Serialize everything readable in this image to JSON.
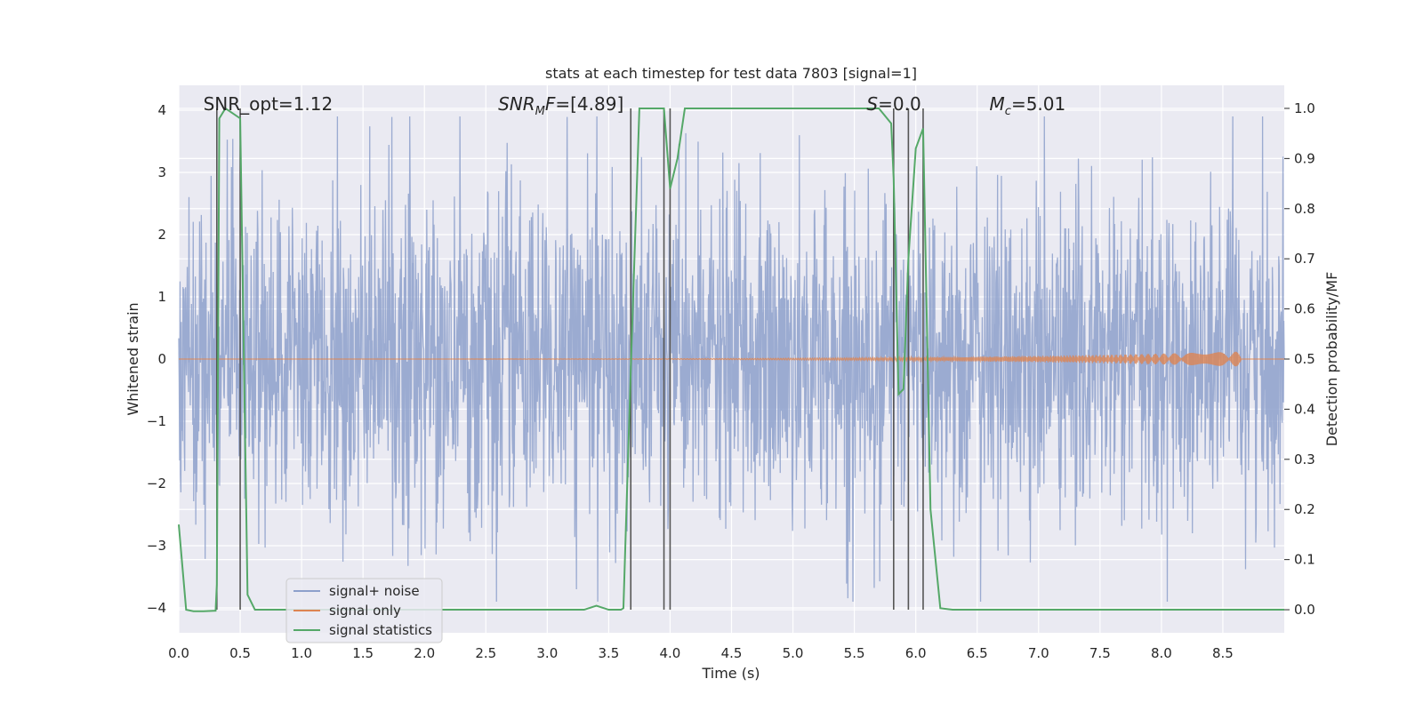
{
  "chart_data": {
    "type": "line",
    "title": "stats at each timestep for test data 7803 [signal=1]",
    "xlabel": "Time (s)",
    "ylabel": "Whitened strain",
    "ylabel_right": "Detection probability/MF",
    "xlim": [
      0,
      9
    ],
    "ylim": [
      -4.4,
      4.4
    ],
    "ylim_right": [
      -0.046,
      1.046
    ],
    "x_ticks": [
      0.0,
      0.5,
      1.0,
      1.5,
      2.0,
      2.5,
      3.0,
      3.5,
      4.0,
      4.5,
      5.0,
      5.5,
      6.0,
      6.5,
      7.0,
      7.5,
      8.0,
      8.5
    ],
    "x_tick_labels": [
      "0.0",
      "0.5",
      "1.0",
      "1.5",
      "2.0",
      "2.5",
      "3.0",
      "3.5",
      "4.0",
      "4.5",
      "5.0",
      "5.5",
      "6.0",
      "6.5",
      "7.0",
      "7.5",
      "8.0",
      "8.5"
    ],
    "y_ticks": [
      -4,
      -3,
      -2,
      -1,
      0,
      1,
      2,
      3,
      4
    ],
    "y_tick_labels": [
      "−4",
      "−3",
      "−2",
      "−1",
      "0",
      "1",
      "2",
      "3",
      "4"
    ],
    "y_right_ticks": [
      0.0,
      0.1,
      0.2,
      0.3,
      0.4,
      0.5,
      0.6,
      0.7,
      0.8,
      0.9,
      1.0
    ],
    "y_right_tick_labels": [
      "0.0",
      "0.1",
      "0.2",
      "0.3",
      "0.4",
      "0.5",
      "0.6",
      "0.7",
      "0.8",
      "0.9",
      "1.0"
    ],
    "grid": true,
    "legend_position": "lower-left",
    "annotations": [
      {
        "text": "SNR_opt=1.12",
        "x": 0.2
      },
      {
        "html": "<tspan font-style='italic'>SNR</tspan><tspan font-style='italic' font-size='13' dy='5'>M</tspan><tspan font-style='italic' dy='-5'>F</tspan>=[4.89]",
        "text": "SNR_MF=[4.89]",
        "x": 2.6
      },
      {
        "html": "<tspan font-style='italic'>S</tspan>=0.0",
        "text": "S=0.0",
        "x": 5.6
      },
      {
        "html": "<tspan font-style='italic'>M</tspan><tspan font-style='italic' font-size='13' dy='5'>c</tspan><tspan dy='-5'>=5.01</tspan>",
        "text": "M_c=5.01",
        "x": 6.6
      }
    ],
    "vertical_lines": [
      0.31,
      0.5,
      3.68,
      3.95,
      4.0,
      5.82,
      5.94,
      6.06
    ],
    "series": [
      {
        "name": "signal+ noise",
        "color": "#8da0cb",
        "noise_amplitude": 1.3,
        "type": "noise"
      },
      {
        "name": "signal only",
        "color": "#dd8452",
        "type": "signal",
        "end_x": 8.65,
        "max_amplitude": 0.12
      },
      {
        "name": "signal statistics",
        "color": "#55a868",
        "axis": "right",
        "x": [
          0.0,
          0.06,
          0.12,
          0.2,
          0.3,
          0.31,
          0.33,
          0.38,
          0.44,
          0.5,
          0.56,
          0.62,
          0.7,
          1.0,
          2.0,
          3.0,
          3.3,
          3.4,
          3.5,
          3.6,
          3.62,
          3.68,
          3.75,
          3.8,
          3.9,
          3.95,
          4.0,
          4.06,
          4.12,
          4.5,
          5.0,
          5.5,
          5.7,
          5.8,
          5.82,
          5.86,
          5.9,
          5.94,
          6.0,
          6.06,
          6.12,
          6.2,
          6.3,
          7.0,
          8.0,
          9.0
        ],
        "y": [
          0.17,
          0.0,
          -0.003,
          -0.003,
          -0.002,
          0.05,
          0.98,
          1.0,
          0.99,
          0.98,
          0.03,
          0.0,
          0.0,
          0.0,
          0.0,
          0.0,
          0.0,
          0.008,
          0.0,
          0.0,
          0.003,
          0.48,
          1.0,
          1.0,
          1.0,
          1.0,
          0.84,
          0.9,
          1.0,
          1.0,
          1.0,
          1.0,
          1.0,
          0.97,
          0.86,
          0.43,
          0.44,
          0.7,
          0.92,
          0.96,
          0.2,
          0.003,
          0.0,
          0.0,
          0.0,
          0.0
        ]
      }
    ]
  }
}
